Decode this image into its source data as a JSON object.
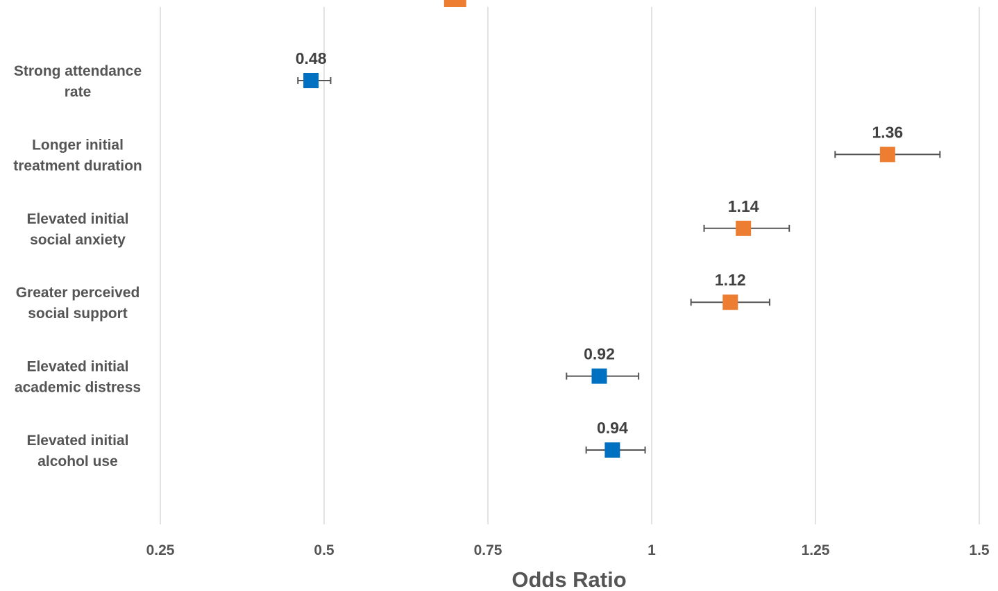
{
  "chart_data": {
    "type": "scatter",
    "subtype": "forest-plot",
    "xlabel": "Odds Ratio",
    "xlim": [
      0.25,
      1.5
    ],
    "x_ticks": [
      0.25,
      0.5,
      0.75,
      1,
      1.25,
      1.5
    ],
    "x_tick_labels": [
      "0.25",
      "0.5",
      "0.75",
      "1",
      "1.25",
      "1.5"
    ],
    "grid": true,
    "colors": {
      "below_one": "#0070C0",
      "above_one": "#ED7D31"
    },
    "partial_top_point": {
      "value": 0.7,
      "color": "#ED7D31"
    },
    "rows": [
      {
        "label_lines": [
          "Strong attendance",
          "rate"
        ],
        "value": 0.48,
        "value_label": "0.48",
        "ci_low": 0.46,
        "ci_high": 0.51,
        "color": "#0070C0"
      },
      {
        "label_lines": [
          "Longer initial",
          "treatment duration"
        ],
        "value": 1.36,
        "value_label": "1.36",
        "ci_low": 1.28,
        "ci_high": 1.44,
        "color": "#ED7D31"
      },
      {
        "label_lines": [
          "Elevated initial",
          "social anxiety"
        ],
        "value": 1.14,
        "value_label": "1.14",
        "ci_low": 1.08,
        "ci_high": 1.21,
        "color": "#ED7D31"
      },
      {
        "label_lines": [
          "Greater perceived",
          "social support"
        ],
        "value": 1.12,
        "value_label": "1.12",
        "ci_low": 1.06,
        "ci_high": 1.18,
        "color": "#ED7D31"
      },
      {
        "label_lines": [
          "Elevated initial",
          "academic distress"
        ],
        "value": 0.92,
        "value_label": "0.92",
        "ci_low": 0.87,
        "ci_high": 0.98,
        "color": "#0070C0"
      },
      {
        "label_lines": [
          "Elevated initial",
          "alcohol use"
        ],
        "value": 0.94,
        "value_label": "0.94",
        "ci_low": 0.9,
        "ci_high": 0.99,
        "color": "#0070C0"
      }
    ]
  }
}
